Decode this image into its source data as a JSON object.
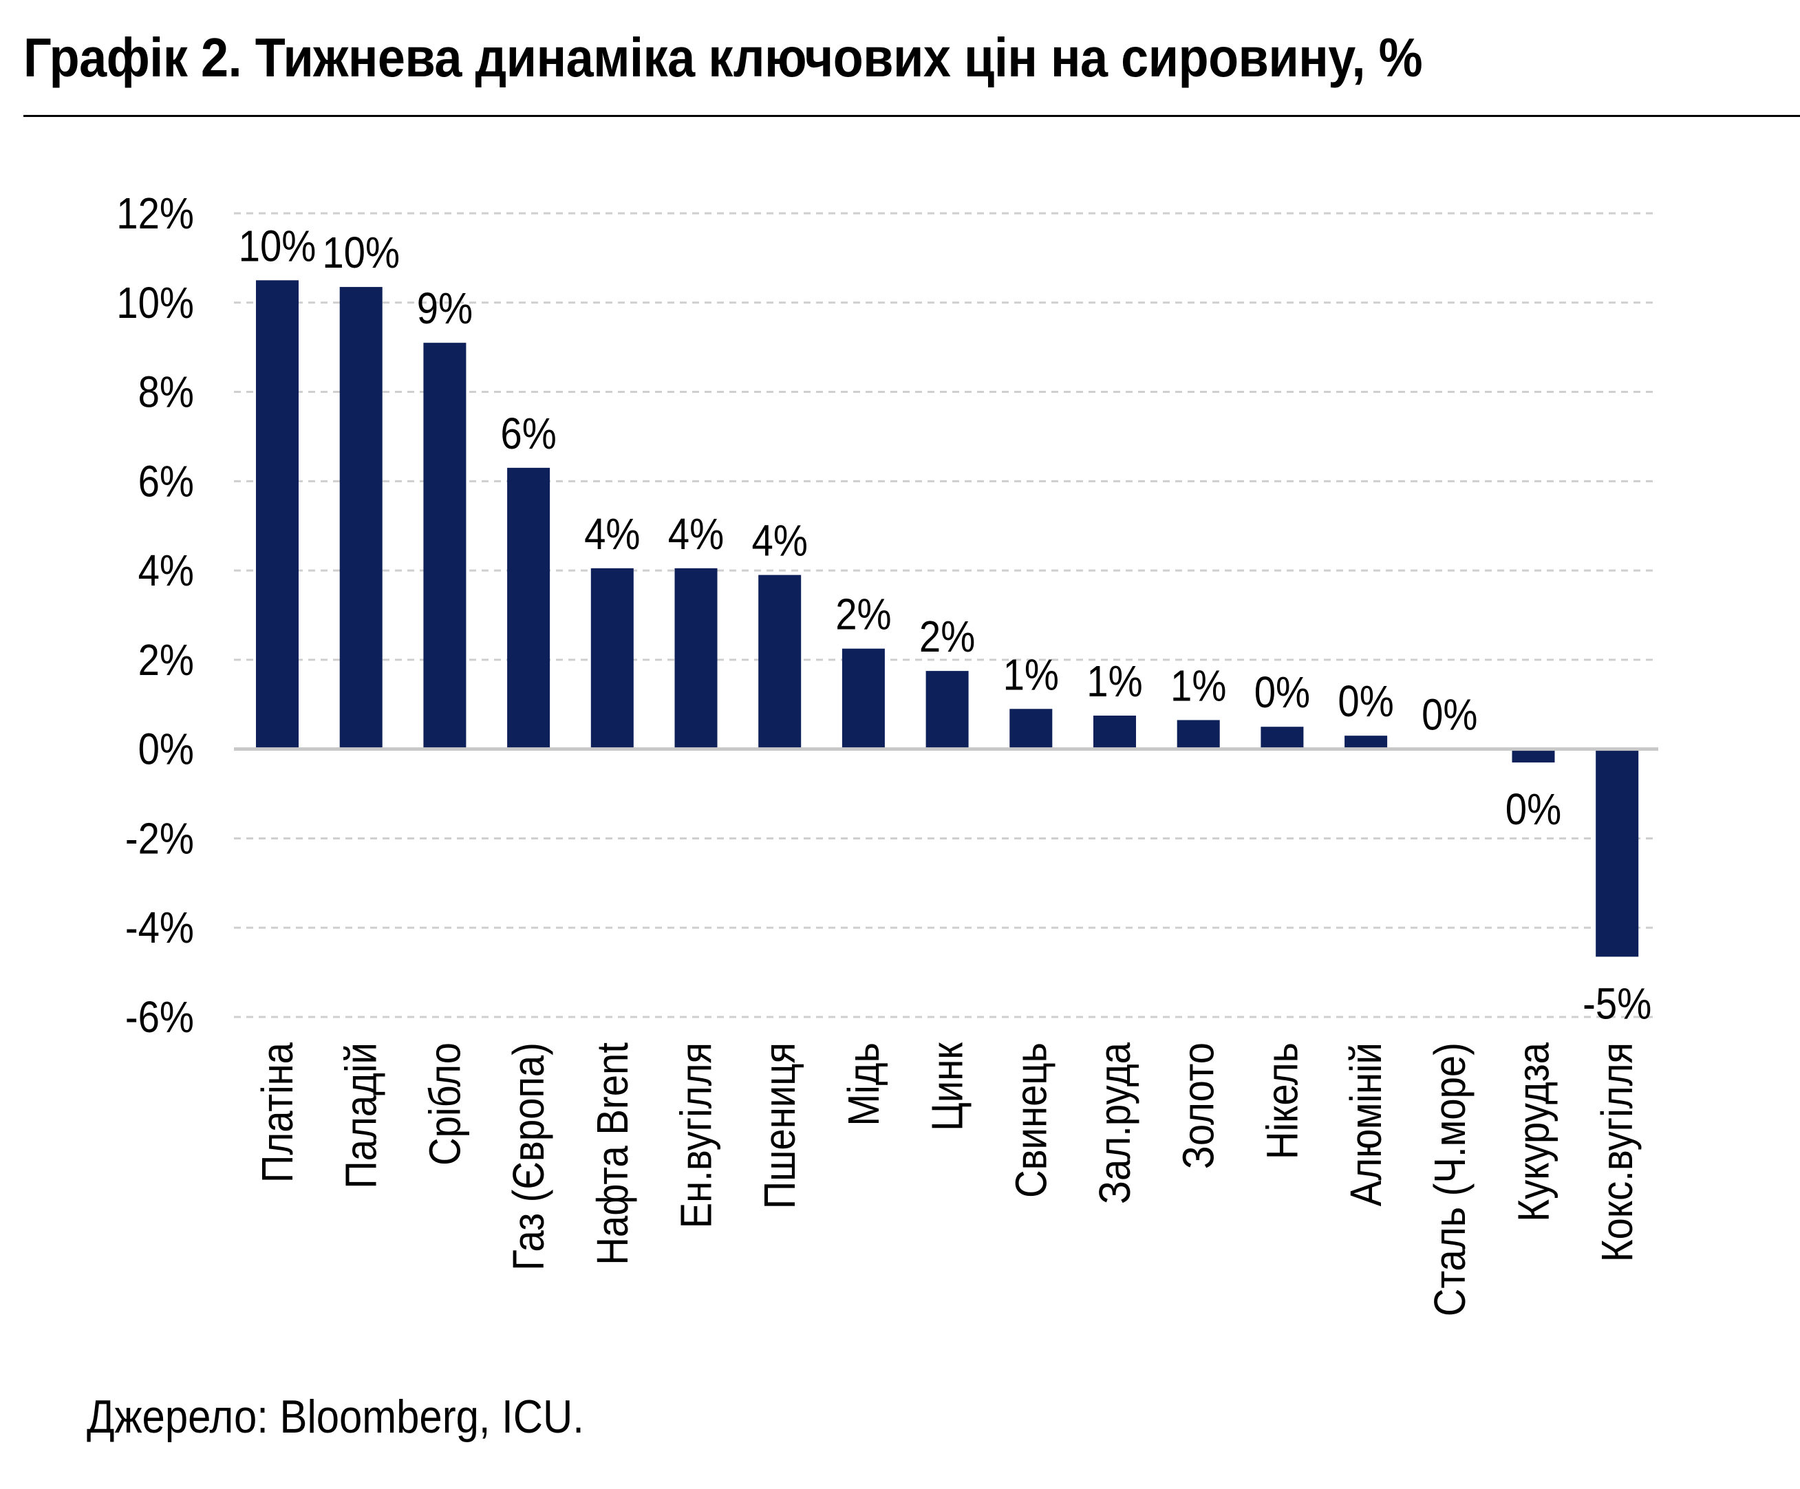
{
  "colors": {
    "bar": "#0d2059",
    "grid": "#cfcfcf",
    "zero": "#c8c8c8"
  },
  "chart_data": {
    "type": "bar",
    "title": "Графік 2. Тижнева динаміка ключових цін на сировину, %",
    "source": "Джерело: Bloomberg, ICU.",
    "categories": [
      "Платіна",
      "Паладій",
      "Срібло",
      "Газ (Європа)",
      "Нафта Brent",
      "Ен.вугілля",
      "Пшениця",
      "Мідь",
      "Цинк",
      "Свинець",
      "Зал.руда",
      "Золото",
      "Нікель",
      "Алюміній",
      "Сталь (Ч.море)",
      "Кукурудза",
      "Кокс.вугілля"
    ],
    "values": [
      10.5,
      10.35,
      9.1,
      6.3,
      4.05,
      4.05,
      3.9,
      2.25,
      1.75,
      0.9,
      0.75,
      0.65,
      0.5,
      0.3,
      0.0,
      -0.3,
      -4.65
    ],
    "data_labels": [
      "10%",
      "10%",
      "9%",
      "6%",
      "4%",
      "4%",
      "4%",
      "2%",
      "2%",
      "1%",
      "1%",
      "1%",
      "0%",
      "0%",
      "0%",
      "0%",
      "-5%"
    ],
    "ylim": [
      -6,
      12
    ],
    "yticks": [
      12,
      10,
      8,
      6,
      4,
      2,
      0,
      -2,
      -4,
      -6
    ],
    "ytick_labels": [
      "12%",
      "10%",
      "8%",
      "6%",
      "4%",
      "2%",
      "0%",
      "-2%",
      "-4%",
      "-6%"
    ],
    "xlabel": "",
    "ylabel": "",
    "grid": true,
    "legend": "none"
  }
}
